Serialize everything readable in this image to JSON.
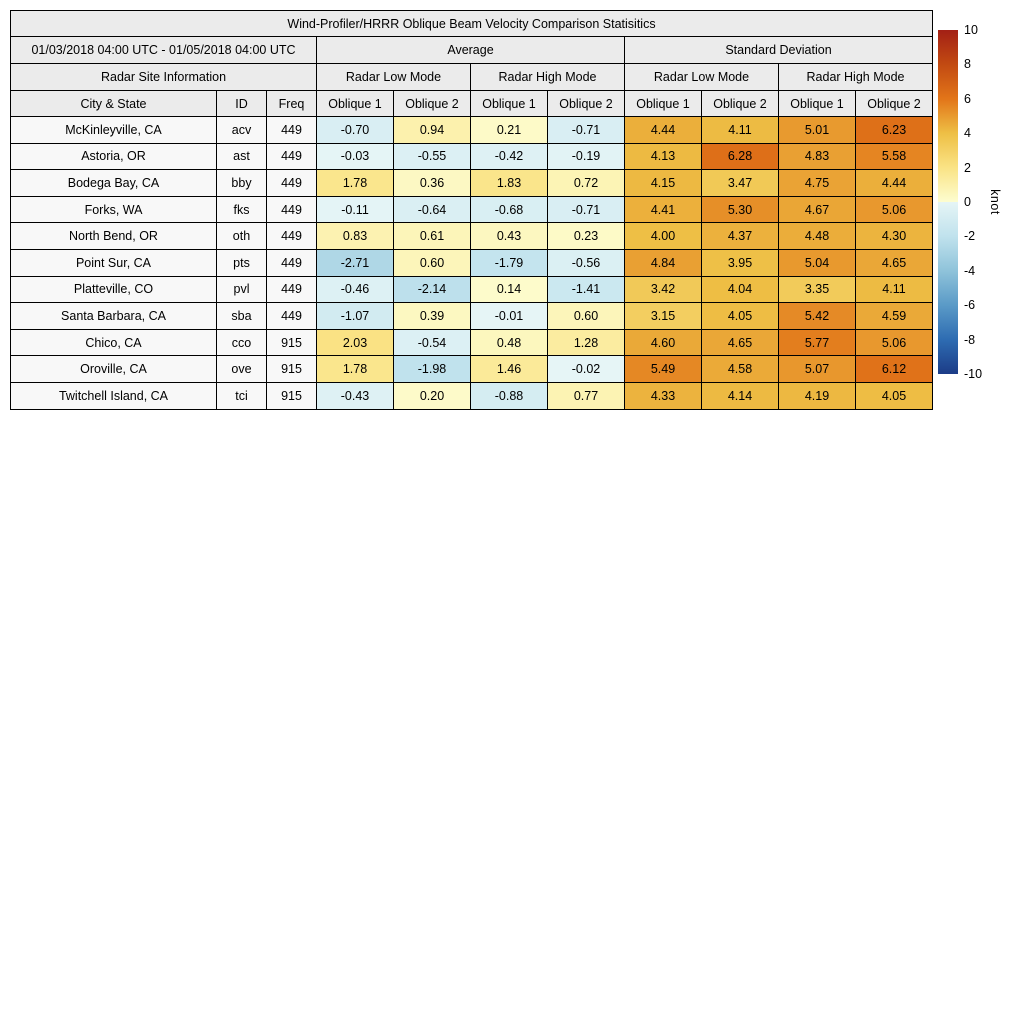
{
  "title": "Wind-Profiler/HRRR Oblique Beam Velocity Comparison Statisitics",
  "table": {
    "date_range": "01/03/2018 04:00 UTC - 01/05/2018 04:00 UTC",
    "group_headers": [
      "Average",
      "Standard Deviation"
    ],
    "site_info_header": "Radar Site Information",
    "mode_headers": [
      "Radar Low Mode",
      "Radar High Mode",
      "Radar Low Mode",
      "Radar High Mode"
    ],
    "col_headers": [
      "City & State",
      "ID",
      "Freq"
    ],
    "oblique_headers": [
      "Oblique 1",
      "Oblique 2",
      "Oblique 1",
      "Oblique 2",
      "Oblique 1",
      "Oblique 2",
      "Oblique 1",
      "Oblique 2"
    ]
  },
  "colorbar": {
    "label": "knot",
    "min": -10,
    "max": 10,
    "ticks": [
      10,
      8,
      6,
      4,
      2,
      0,
      -2,
      -4,
      -6,
      -8,
      -10
    ],
    "stops": [
      [
        -10,
        "#1c3c87"
      ],
      [
        -8,
        "#2e6cb2"
      ],
      [
        -6,
        "#5a9ac7"
      ],
      [
        -4,
        "#8fc3da"
      ],
      [
        -2,
        "#c0e2ed"
      ],
      [
        -0.0001,
        "#e6f5f6"
      ],
      [
        0.0001,
        "#fdfdd0"
      ],
      [
        2,
        "#fae385"
      ],
      [
        4,
        "#eebf45"
      ],
      [
        6,
        "#e27519"
      ],
      [
        8,
        "#c24a12"
      ],
      [
        10,
        "#a32015"
      ]
    ]
  },
  "chart_data": {
    "type": "heatmap",
    "title": "Wind-Profiler/HRRR Oblique Beam Velocity Comparison Statisitics",
    "unit": "knot",
    "value_range": [
      -10,
      10
    ],
    "columns": [
      "Avg Low Oblique 1",
      "Avg Low Oblique 2",
      "Avg High Oblique 1",
      "Avg High Oblique 2",
      "Std Low Oblique 1",
      "Std Low Oblique 2",
      "Std High Oblique 1",
      "Std High Oblique 2"
    ],
    "rows": [
      {
        "city": "McKinleyville, CA",
        "id": "acv",
        "freq": "449",
        "values": [
          -0.7,
          0.94,
          0.21,
          -0.71,
          4.44,
          4.11,
          5.01,
          6.23
        ]
      },
      {
        "city": "Astoria, OR",
        "id": "ast",
        "freq": "449",
        "values": [
          -0.03,
          -0.55,
          -0.42,
          -0.19,
          4.13,
          6.28,
          4.83,
          5.58
        ]
      },
      {
        "city": "Bodega Bay, CA",
        "id": "bby",
        "freq": "449",
        "values": [
          1.78,
          0.36,
          1.83,
          0.72,
          4.15,
          3.47,
          4.75,
          4.44
        ]
      },
      {
        "city": "Forks, WA",
        "id": "fks",
        "freq": "449",
        "values": [
          -0.11,
          -0.64,
          -0.68,
          -0.71,
          4.41,
          5.3,
          4.67,
          5.06
        ]
      },
      {
        "city": "North Bend, OR",
        "id": "oth",
        "freq": "449",
        "values": [
          0.83,
          0.61,
          0.43,
          0.23,
          4.0,
          4.37,
          4.48,
          4.3
        ]
      },
      {
        "city": "Point Sur, CA",
        "id": "pts",
        "freq": "449",
        "values": [
          -2.71,
          0.6,
          -1.79,
          -0.56,
          4.84,
          3.95,
          5.04,
          4.65
        ]
      },
      {
        "city": "Platteville, CO",
        "id": "pvl",
        "freq": "449",
        "values": [
          -0.46,
          -2.14,
          0.14,
          -1.41,
          3.42,
          4.04,
          3.35,
          4.11
        ]
      },
      {
        "city": "Santa Barbara, CA",
        "id": "sba",
        "freq": "449",
        "values": [
          -1.07,
          0.39,
          -0.01,
          0.6,
          3.15,
          4.05,
          5.42,
          4.59
        ]
      },
      {
        "city": "Chico, CA",
        "id": "cco",
        "freq": "915",
        "values": [
          2.03,
          -0.54,
          0.48,
          1.28,
          4.6,
          4.65,
          5.77,
          5.06
        ]
      },
      {
        "city": "Oroville, CA",
        "id": "ove",
        "freq": "915",
        "values": [
          1.78,
          -1.98,
          1.46,
          -0.02,
          5.49,
          4.58,
          5.07,
          6.12
        ]
      },
      {
        "city": "Twitchell Island, CA",
        "id": "tci",
        "freq": "915",
        "values": [
          -0.43,
          0.2,
          -0.88,
          0.77,
          4.33,
          4.14,
          4.19,
          4.05
        ]
      }
    ]
  }
}
